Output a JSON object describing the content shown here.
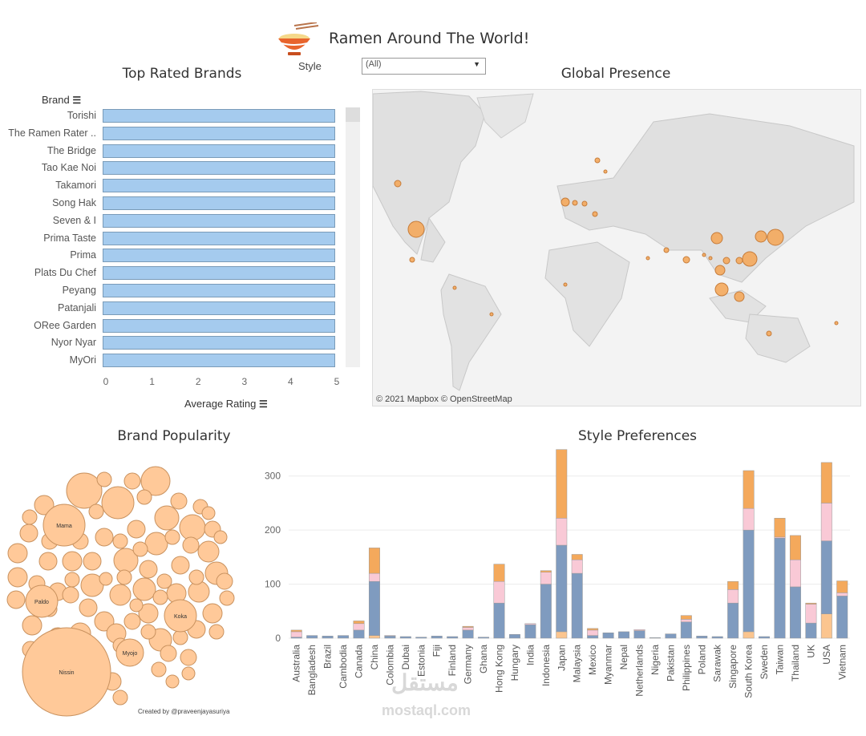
{
  "header": {
    "title": "Ramen Around The World!",
    "filter_label": "Style",
    "filter_value": "(All)"
  },
  "sections": {
    "top_brands": "Top Rated Brands",
    "global": "Global Presence",
    "popularity": "Brand Popularity",
    "style_pref": "Style Preferences"
  },
  "map": {
    "attribution": "© 2021 Mapbox  © OpenStreetMap"
  },
  "credit": "Created by @praveenjayasuriya",
  "watermark": {
    "arabic": "مستقل",
    "latin": "mostaql.com"
  },
  "colors": {
    "bar": "#a5cbee",
    "bubble": "#ffc999",
    "orange": "#f4a95c",
    "pink": "#f9c9d6",
    "blue": "#7f9bbf",
    "peach": "#fbc58f"
  },
  "chart_data": [
    {
      "type": "bar",
      "orientation": "horizontal",
      "title": "Top Rated Brands",
      "ylabel": "Brand",
      "xlabel": "Average Rating",
      "xlim": [
        0,
        5
      ],
      "xticks": [
        "0",
        "1",
        "2",
        "3",
        "4",
        "5"
      ],
      "categories": [
        "Torishi",
        "The Ramen Rater ..",
        "The Bridge",
        "Tao Kae Noi",
        "Takamori",
        "Song Hak",
        "Seven & I",
        "Prima Taste",
        "Prima",
        "Plats Du Chef",
        "Peyang",
        "Patanjali",
        "ORee Garden",
        "Nyor Nyar",
        "MyOri"
      ],
      "values": [
        5,
        5,
        5,
        5,
        5,
        5,
        5,
        5,
        5,
        5,
        5,
        5,
        5,
        5,
        5
      ]
    },
    {
      "type": "bubble",
      "title": "Brand Popularity",
      "labels": [
        "Nissin",
        "Mama",
        "Paldo",
        "Koka",
        "Myojo"
      ]
    },
    {
      "type": "bar",
      "stacked": true,
      "title": "Style Preferences",
      "ylim": [
        0,
        350
      ],
      "yticks": [
        "0",
        "100",
        "200",
        "300"
      ],
      "categories": [
        "Australia",
        "Bangladesh",
        "Brazil",
        "Cambodia",
        "Canada",
        "China",
        "Colombia",
        "Dubai",
        "Estonia",
        "Fiji",
        "Finland",
        "Germany",
        "Ghana",
        "Hong Kong",
        "Hungary",
        "India",
        "Indonesia",
        "Japan",
        "Malaysia",
        "Mexico",
        "Myanmar",
        "Nepal",
        "Netherlands",
        "Nigeria",
        "Pakistan",
        "Philippines",
        "Poland",
        "Sarawak",
        "Singapore",
        "South Korea",
        "Sweden",
        "Taiwan",
        "Thailand",
        "UK",
        "USA",
        "Vietnam"
      ],
      "series": [
        {
          "values": [
            0,
            0,
            0,
            0,
            0,
            5,
            0,
            0,
            0,
            0,
            0,
            0,
            0,
            0,
            0,
            0,
            0,
            12,
            0,
            0,
            0,
            0,
            0,
            0,
            0,
            0,
            0,
            0,
            0,
            12,
            0,
            0,
            0,
            0,
            45,
            0
          ]
        },
        {
          "values": [
            2,
            5,
            4,
            5,
            15,
            100,
            4,
            3,
            2,
            4,
            3,
            15,
            2,
            65,
            7,
            25,
            100,
            160,
            120,
            5,
            10,
            12,
            14,
            1,
            8,
            30,
            4,
            3,
            65,
            188,
            3,
            185,
            95,
            28,
            135,
            78
          ]
        },
        {
          "values": [
            10,
            0,
            0,
            0,
            12,
            15,
            1,
            0,
            0,
            0,
            0,
            5,
            0,
            40,
            0,
            2,
            22,
            50,
            25,
            10,
            0,
            0,
            2,
            0,
            0,
            5,
            0,
            0,
            25,
            40,
            0,
            2,
            50,
            35,
            70,
            6
          ]
        },
        {
          "values": [
            3,
            0,
            0,
            0,
            5,
            47,
            0,
            0,
            0,
            0,
            0,
            2,
            0,
            32,
            0,
            0,
            3,
            127,
            10,
            3,
            0,
            0,
            0,
            0,
            0,
            7,
            0,
            0,
            15,
            70,
            0,
            35,
            45,
            2,
            75,
            22
          ]
        }
      ]
    }
  ]
}
